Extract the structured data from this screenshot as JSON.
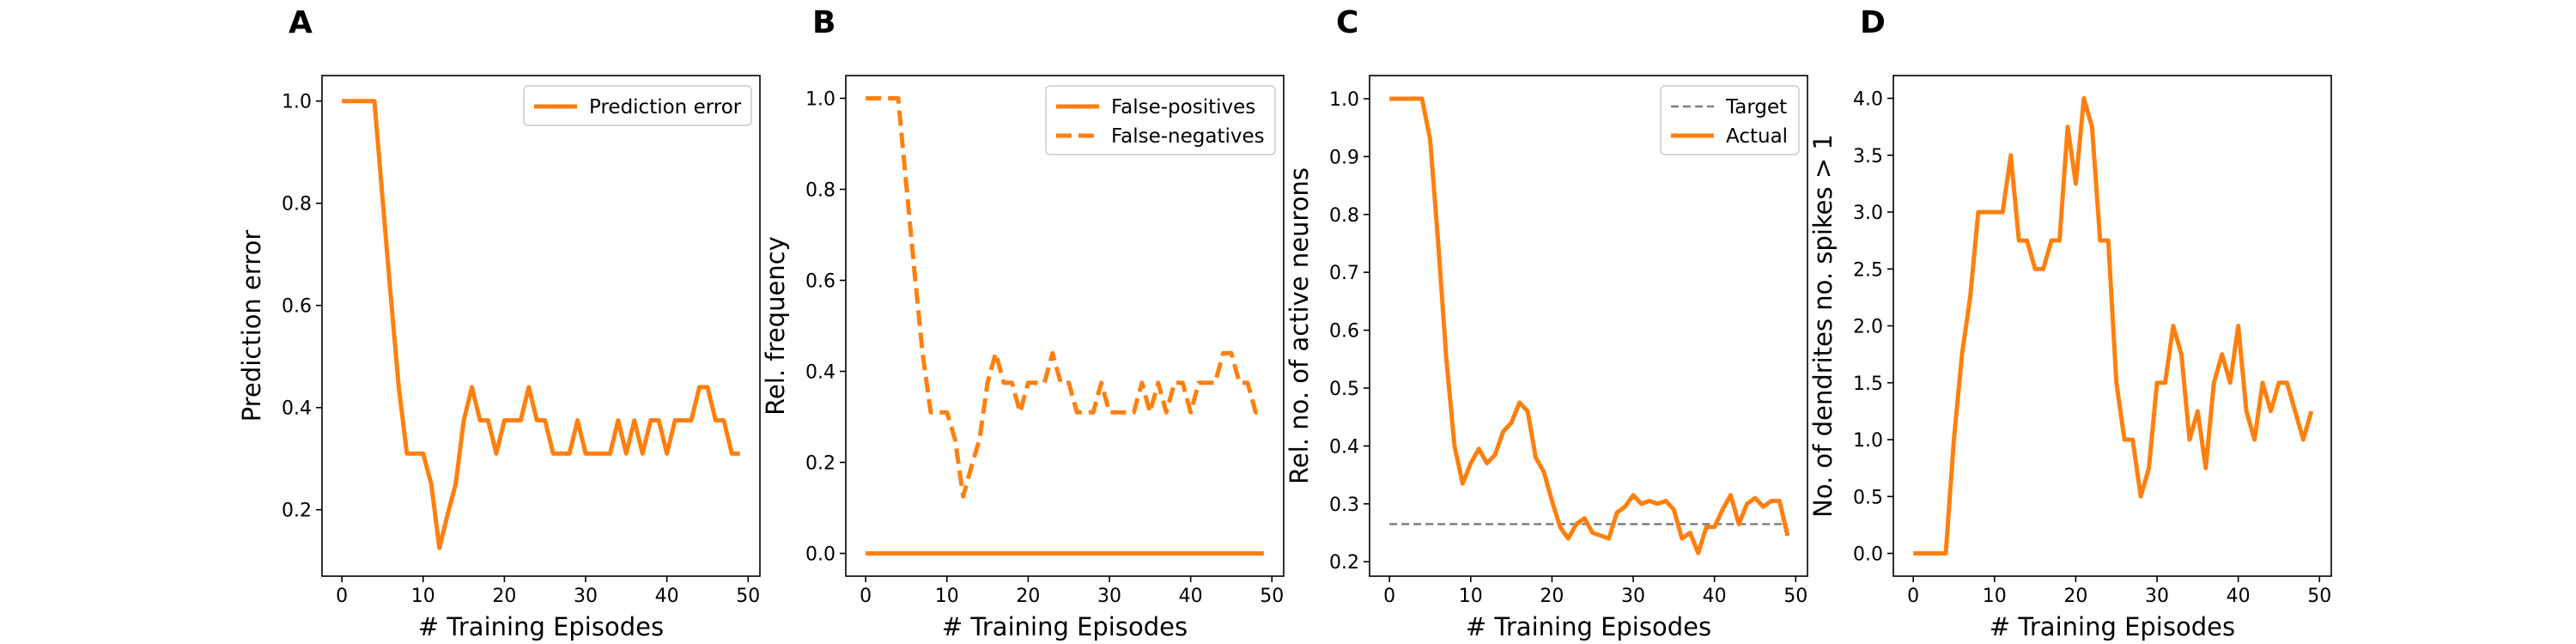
{
  "chart_data": [
    {
      "panel": "A",
      "type": "line",
      "xlabel": "# Training Episodes",
      "ylabel": "Prediction error",
      "xlim": [
        -2.45,
        51.45
      ],
      "ylim": [
        0.07,
        1.05
      ],
      "xticks": [
        0,
        10,
        20,
        30,
        40,
        50
      ],
      "yticks": [
        0.2,
        0.4,
        0.6,
        0.8,
        1.0
      ],
      "ytick_labels": [
        "0.2",
        "0.4",
        "0.6",
        "0.8",
        "1.0"
      ],
      "legend": {
        "placement": "upper right",
        "entries": [
          {
            "label": "Prediction error",
            "style": "solid"
          }
        ]
      },
      "series": [
        {
          "name": "Prediction error",
          "style": "solid",
          "color": "#ff7f0e",
          "x": [
            0,
            1,
            2,
            3,
            4,
            5,
            6,
            7,
            8,
            9,
            10,
            11,
            12,
            13,
            14,
            15,
            16,
            17,
            18,
            19,
            20,
            21,
            22,
            23,
            24,
            25,
            26,
            27,
            28,
            29,
            30,
            31,
            32,
            33,
            34,
            35,
            36,
            37,
            38,
            39,
            40,
            41,
            42,
            43,
            44,
            45,
            46,
            47,
            48,
            49
          ],
          "y": [
            1.0,
            1.0,
            1.0,
            1.0,
            1.0,
            0.81,
            0.62,
            0.44,
            0.31,
            0.31,
            0.31,
            0.25,
            0.125,
            0.19,
            0.25,
            0.375,
            0.44,
            0.375,
            0.375,
            0.31,
            0.375,
            0.375,
            0.375,
            0.44,
            0.375,
            0.375,
            0.31,
            0.31,
            0.31,
            0.375,
            0.31,
            0.31,
            0.31,
            0.31,
            0.375,
            0.31,
            0.375,
            0.31,
            0.375,
            0.375,
            0.31,
            0.375,
            0.375,
            0.375,
            0.44,
            0.44,
            0.375,
            0.375,
            0.31,
            0.31
          ]
        }
      ]
    },
    {
      "panel": "B",
      "type": "line",
      "xlabel": "# Training Episodes",
      "ylabel": "Rel. frequency",
      "xlim": [
        -2.45,
        51.45
      ],
      "ylim": [
        -0.05,
        1.05
      ],
      "xticks": [
        0,
        10,
        20,
        30,
        40,
        50
      ],
      "yticks": [
        0.0,
        0.2,
        0.4,
        0.6,
        0.8,
        1.0
      ],
      "ytick_labels": [
        "0.0",
        "0.2",
        "0.4",
        "0.6",
        "0.8",
        "1.0"
      ],
      "legend": {
        "placement": "upper right",
        "entries": [
          {
            "label": "False-positives",
            "style": "solid"
          },
          {
            "label": "False-negatives",
            "style": "dashed"
          }
        ]
      },
      "series": [
        {
          "name": "False-positives",
          "style": "solid",
          "color": "#ff7f0e",
          "x": [
            0,
            1,
            2,
            3,
            4,
            5,
            6,
            7,
            8,
            9,
            10,
            11,
            12,
            13,
            14,
            15,
            16,
            17,
            18,
            19,
            20,
            21,
            22,
            23,
            24,
            25,
            26,
            27,
            28,
            29,
            30,
            31,
            32,
            33,
            34,
            35,
            36,
            37,
            38,
            39,
            40,
            41,
            42,
            43,
            44,
            45,
            46,
            47,
            48,
            49
          ],
          "y": [
            0,
            0,
            0,
            0,
            0,
            0,
            0,
            0,
            0,
            0,
            0,
            0,
            0,
            0,
            0,
            0,
            0,
            0,
            0,
            0,
            0,
            0,
            0,
            0,
            0,
            0,
            0,
            0,
            0,
            0,
            0,
            0,
            0,
            0,
            0,
            0,
            0,
            0,
            0,
            0,
            0,
            0,
            0,
            0,
            0,
            0,
            0,
            0,
            0,
            0
          ]
        },
        {
          "name": "False-negatives",
          "style": "dashed",
          "color": "#ff7f0e",
          "x": [
            0,
            1,
            2,
            3,
            4,
            5,
            6,
            7,
            8,
            9,
            10,
            11,
            12,
            13,
            14,
            15,
            16,
            17,
            18,
            19,
            20,
            21,
            22,
            23,
            24,
            25,
            26,
            27,
            28,
            29,
            30,
            31,
            32,
            33,
            34,
            35,
            36,
            37,
            38,
            39,
            40,
            41,
            42,
            43,
            44,
            45,
            46,
            47,
            48,
            49
          ],
          "y": [
            1.0,
            1.0,
            1.0,
            1.0,
            1.0,
            0.81,
            0.62,
            0.44,
            0.31,
            0.31,
            0.31,
            0.25,
            0.125,
            0.19,
            0.25,
            0.375,
            0.44,
            0.375,
            0.375,
            0.31,
            0.375,
            0.375,
            0.375,
            0.44,
            0.375,
            0.375,
            0.31,
            0.31,
            0.31,
            0.375,
            0.31,
            0.31,
            0.31,
            0.31,
            0.375,
            0.31,
            0.375,
            0.31,
            0.375,
            0.375,
            0.31,
            0.375,
            0.375,
            0.375,
            0.44,
            0.44,
            0.375,
            0.375,
            0.31,
            0.31
          ]
        }
      ]
    },
    {
      "panel": "C",
      "type": "line",
      "xlabel": "# Training Episodes",
      "ylabel": "Rel. no. of active neurons",
      "xlim": [
        -2.45,
        51.45
      ],
      "ylim": [
        0.175,
        1.04
      ],
      "xticks": [
        0,
        10,
        20,
        30,
        40,
        50
      ],
      "yticks": [
        0.2,
        0.3,
        0.4,
        0.5,
        0.6,
        0.7,
        0.8,
        0.9,
        1.0
      ],
      "ytick_labels": [
        "0.2",
        "0.3",
        "0.4",
        "0.5",
        "0.6",
        "0.7",
        "0.8",
        "0.9",
        "1.0"
      ],
      "legend": {
        "placement": "upper right",
        "entries": [
          {
            "label": "Target",
            "style": "dashed-grey"
          },
          {
            "label": "Actual",
            "style": "solid"
          }
        ]
      },
      "series": [
        {
          "name": "Target",
          "style": "dashed-grey",
          "color": "#7f7f7f",
          "x": [
            0,
            49
          ],
          "y": [
            0.265,
            0.265
          ]
        },
        {
          "name": "Actual",
          "style": "solid",
          "color": "#ff7f0e",
          "x": [
            0,
            1,
            2,
            3,
            4,
            5,
            6,
            7,
            8,
            9,
            10,
            11,
            12,
            13,
            14,
            15,
            16,
            17,
            18,
            19,
            20,
            21,
            22,
            23,
            24,
            25,
            26,
            27,
            28,
            29,
            30,
            31,
            32,
            33,
            34,
            35,
            36,
            37,
            38,
            39,
            40,
            41,
            42,
            43,
            44,
            45,
            46,
            47,
            48,
            49
          ],
          "y": [
            1.0,
            1.0,
            1.0,
            1.0,
            1.0,
            0.93,
            0.75,
            0.55,
            0.4,
            0.335,
            0.37,
            0.395,
            0.37,
            0.385,
            0.425,
            0.44,
            0.475,
            0.46,
            0.38,
            0.355,
            0.305,
            0.26,
            0.24,
            0.265,
            0.275,
            0.25,
            0.245,
            0.24,
            0.285,
            0.295,
            0.315,
            0.3,
            0.305,
            0.3,
            0.305,
            0.29,
            0.24,
            0.25,
            0.215,
            0.26,
            0.26,
            0.29,
            0.315,
            0.265,
            0.3,
            0.31,
            0.295,
            0.305,
            0.305,
            0.245
          ]
        }
      ]
    },
    {
      "panel": "D",
      "type": "line",
      "xlabel": "# Training Episodes",
      "ylabel": "No. of dendrites no. spikes > 1",
      "xlim": [
        -2.45,
        51.45
      ],
      "ylim": [
        -0.2,
        4.2
      ],
      "xticks": [
        0,
        10,
        20,
        30,
        40,
        50
      ],
      "yticks": [
        0.0,
        0.5,
        1.0,
        1.5,
        2.0,
        2.5,
        3.0,
        3.5,
        4.0
      ],
      "ytick_labels": [
        "0.0",
        "0.5",
        "1.0",
        "1.5",
        "2.0",
        "2.5",
        "3.0",
        "3.5",
        "4.0"
      ],
      "legend": null,
      "series": [
        {
          "name": "",
          "style": "solid",
          "color": "#ff7f0e",
          "x": [
            0,
            1,
            2,
            3,
            4,
            5,
            6,
            7,
            8,
            9,
            10,
            11,
            12,
            13,
            14,
            15,
            16,
            17,
            18,
            19,
            20,
            21,
            22,
            23,
            24,
            25,
            26,
            27,
            28,
            29,
            30,
            31,
            32,
            33,
            34,
            35,
            36,
            37,
            38,
            39,
            40,
            41,
            42,
            43,
            44,
            45,
            46,
            47,
            48,
            49
          ],
          "y": [
            0,
            0,
            0,
            0,
            0,
            1.0,
            1.75,
            2.25,
            3.0,
            3.0,
            3.0,
            3.0,
            3.5,
            2.75,
            2.75,
            2.5,
            2.5,
            2.75,
            2.75,
            3.75,
            3.25,
            4.0,
            3.75,
            2.75,
            2.75,
            1.5,
            1.0,
            1.0,
            0.5,
            0.75,
            1.5,
            1.5,
            2.0,
            1.75,
            1.0,
            1.25,
            0.75,
            1.5,
            1.75,
            1.5,
            2.0,
            1.25,
            1.0,
            1.5,
            1.25,
            1.5,
            1.5,
            1.25,
            1.0,
            1.25
          ]
        }
      ]
    }
  ]
}
